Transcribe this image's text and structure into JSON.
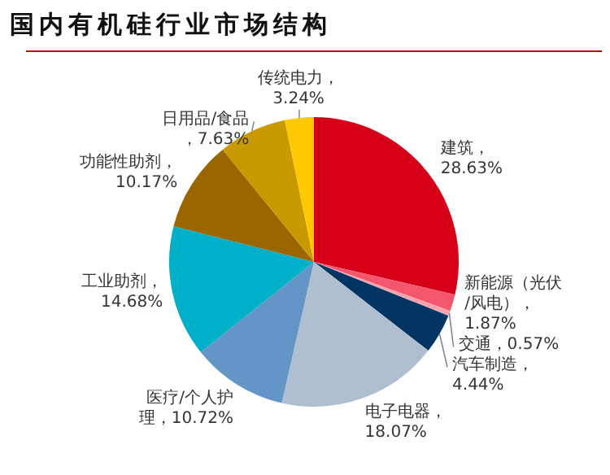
{
  "chart_data": {
    "type": "pie",
    "title": "国内有机硅行业市场结构",
    "categories": [
      "建筑",
      "新能源（光伏/风电）",
      "交通",
      "汽车制造",
      "电子电器",
      "医疗/个人护理",
      "工业助剂",
      "功能性助剂",
      "日用品/食品",
      "传统电力"
    ],
    "values": [
      28.63,
      1.87,
      0.57,
      4.44,
      18.07,
      10.72,
      14.68,
      10.17,
      7.63,
      3.24
    ],
    "value_labels": [
      "，28.63%",
      "，1.87%",
      "，0.57%",
      "，4.44%",
      "，18.07%",
      "，10.72%",
      "，14.68%",
      "，10.17%",
      "，7.63%",
      "，3.24%"
    ],
    "colors": [
      "#d50018",
      "#f4566e",
      "#f7a4b0",
      "#003462",
      "#b0bfd0",
      "#6495c7",
      "#00b0c8",
      "#996600",
      "#c99a00",
      "#ffc800"
    ],
    "legend": false
  }
}
